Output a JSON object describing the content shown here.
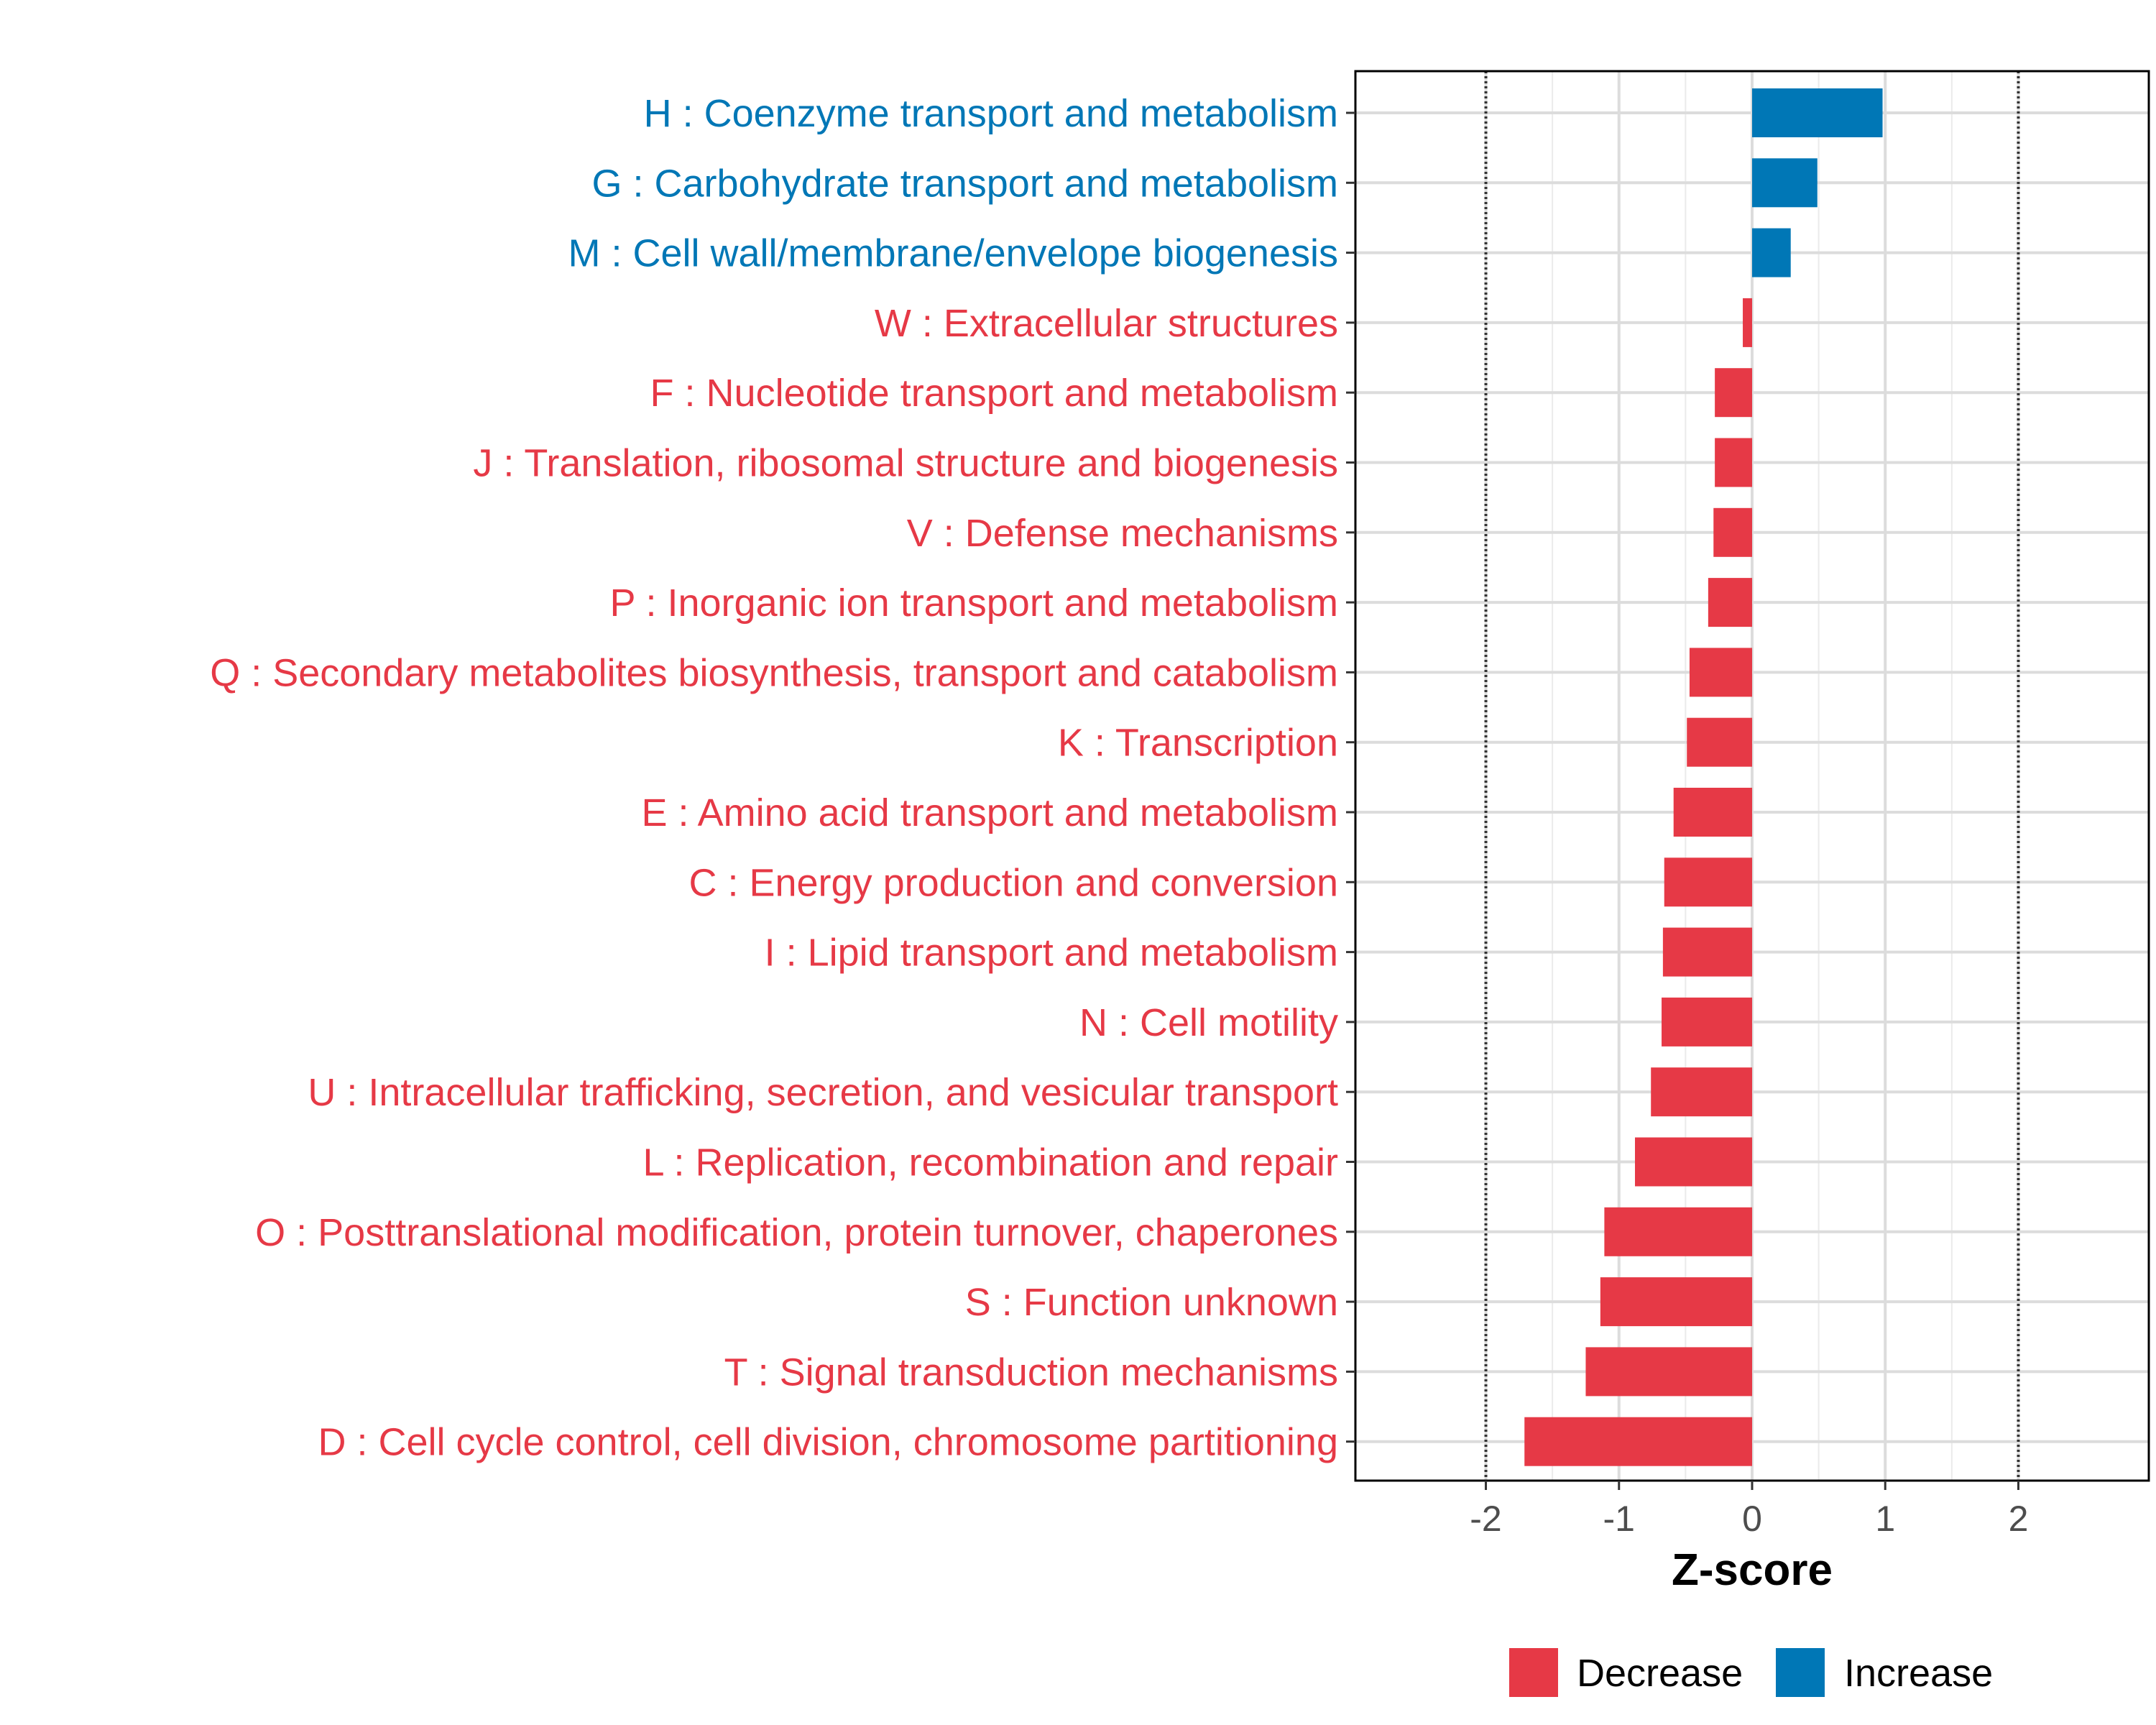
{
  "chart_data": {
    "type": "bar",
    "orientation": "horizontal",
    "xlabel": "Z-score",
    "xlim": [
      -2.98,
      2.98
    ],
    "x_ticks": [
      -2,
      -1,
      0,
      1,
      2
    ],
    "x_tick_labels": [
      "-2",
      "-1",
      "0",
      "1",
      "2"
    ],
    "reference_lines": [
      -2,
      2
    ],
    "grid": true,
    "legend_position": "bottom",
    "colors": {
      "Decrease": "#e63946",
      "Increase": "#0077b6"
    },
    "legend": [
      {
        "label": "Decrease",
        "color": "#e63946"
      },
      {
        "label": "Increase",
        "color": "#0077b6"
      }
    ],
    "categories": [
      "H : Coenzyme transport and metabolism",
      "G : Carbohydrate transport and metabolism",
      "M : Cell wall/membrane/envelope biogenesis",
      "W : Extracellular structures",
      "F : Nucleotide transport and metabolism",
      "J : Translation, ribosomal structure and biogenesis",
      "V : Defense mechanisms",
      "P : Inorganic ion transport and metabolism",
      "Q : Secondary metabolites biosynthesis, transport and catabolism",
      "K : Transcription",
      "E : Amino acid transport and metabolism",
      "C : Energy production and conversion",
      "I : Lipid transport and metabolism",
      "N : Cell motility",
      "U : Intracellular trafficking, secretion, and vesicular transport",
      "L : Replication, recombination and repair",
      "O : Posttranslational modification, protein turnover, chaperones",
      "S : Function unknown",
      "T : Signal transduction mechanisms",
      "D : Cell cycle control, cell division, chromosome partitioning"
    ],
    "values": [
      0.98,
      0.49,
      0.29,
      -0.07,
      -0.28,
      -0.28,
      -0.29,
      -0.33,
      -0.47,
      -0.49,
      -0.59,
      -0.66,
      -0.67,
      -0.68,
      -0.76,
      -0.88,
      -1.11,
      -1.14,
      -1.25,
      -1.71
    ],
    "groups": [
      "Increase",
      "Increase",
      "Increase",
      "Decrease",
      "Decrease",
      "Decrease",
      "Decrease",
      "Decrease",
      "Decrease",
      "Decrease",
      "Decrease",
      "Decrease",
      "Decrease",
      "Decrease",
      "Decrease",
      "Decrease",
      "Decrease",
      "Decrease",
      "Decrease",
      "Decrease"
    ]
  }
}
